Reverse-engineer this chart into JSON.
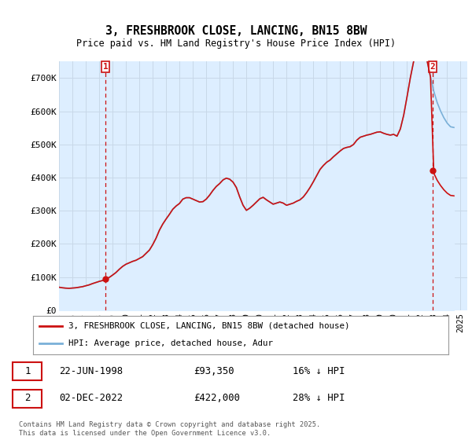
{
  "title": "3, FRESHBROOK CLOSE, LANCING, BN15 8BW",
  "subtitle": "Price paid vs. HM Land Registry's House Price Index (HPI)",
  "bg_color": "#ffffff",
  "fill_color": "#ddeeff",
  "grid_color": "#c8d8e8",
  "hpi_color": "#7ab0d8",
  "price_color": "#cc1111",
  "ylim": [
    0,
    750000
  ],
  "yticks": [
    0,
    100000,
    200000,
    300000,
    400000,
    500000,
    600000,
    700000
  ],
  "ytick_labels": [
    "£0",
    "£100K",
    "£200K",
    "£300K",
    "£400K",
    "£500K",
    "£600K",
    "£700K"
  ],
  "sale1_date": "22-JUN-1998",
  "sale1_price": 93350,
  "sale1_hpi_text": "16% ↓ HPI",
  "sale2_date": "02-DEC-2022",
  "sale2_price": 422000,
  "sale2_hpi_text": "28% ↓ HPI",
  "legend_label1": "3, FRESHBROOK CLOSE, LANCING, BN15 8BW (detached house)",
  "legend_label2": "HPI: Average price, detached house, Adur",
  "footnote": "Contains HM Land Registry data © Crown copyright and database right 2025.\nThis data is licensed under the Open Government Licence v3.0.",
  "sale1_x": 1998.47,
  "sale2_x": 2022.92,
  "hpi_index": [
    63.5,
    62.0,
    61.0,
    60.5,
    61.2,
    62.0,
    63.5,
    65.0,
    67.5,
    70.0,
    73.5,
    76.5,
    79.5,
    82.0,
    86.0,
    90.5,
    97.0,
    104.0,
    113.0,
    121.0,
    127.0,
    131.0,
    135.0,
    138.0,
    143.0,
    148.0,
    157.0,
    166.0,
    181.0,
    199.0,
    221.0,
    238.0,
    252.0,
    265.0,
    279.0,
    288.0,
    295.0,
    307.0,
    311.0,
    311.0,
    307.0,
    303.0,
    299.0,
    300.0,
    307.0,
    318.0,
    331.0,
    342.0,
    350.0,
    360.0,
    365.0,
    362.0,
    354.0,
    339.0,
    313.0,
    290.0,
    276.0,
    282.0,
    290.0,
    299.0,
    308.0,
    312.0,
    305.0,
    299.0,
    293.0,
    296.0,
    299.0,
    296.0,
    290.0,
    293.0,
    296.0,
    301.0,
    305.0,
    313.0,
    325.0,
    339.0,
    355.0,
    372.0,
    389.0,
    400.0,
    409.0,
    415.0,
    424.0,
    432.0,
    440.0,
    447.0,
    450.0,
    452.0,
    458.0,
    470.0,
    478.0,
    481.0,
    484.0,
    486.0,
    489.0,
    492.0,
    493.0,
    489.0,
    486.0,
    484.0,
    486.0,
    481.0,
    501.0,
    539.0,
    590.0,
    643.0,
    689.0,
    723.0,
    742.0,
    725.0,
    689.0,
    645.0,
    605.0,
    574.0,
    551.0,
    532.0,
    517.0,
    507.0,
    505.0
  ],
  "hpi_years": [
    1995.0,
    1995.25,
    1995.5,
    1995.75,
    1996.0,
    1996.25,
    1996.5,
    1996.75,
    1997.0,
    1997.25,
    1997.5,
    1997.75,
    1998.0,
    1998.25,
    1998.5,
    1998.75,
    1999.0,
    1999.25,
    1999.5,
    1999.75,
    2000.0,
    2000.25,
    2000.5,
    2000.75,
    2001.0,
    2001.25,
    2001.5,
    2001.75,
    2002.0,
    2002.25,
    2002.5,
    2002.75,
    2003.0,
    2003.25,
    2003.5,
    2003.75,
    2004.0,
    2004.25,
    2004.5,
    2004.75,
    2005.0,
    2005.25,
    2005.5,
    2005.75,
    2006.0,
    2006.25,
    2006.5,
    2006.75,
    2007.0,
    2007.25,
    2007.5,
    2007.75,
    2008.0,
    2008.25,
    2008.5,
    2008.75,
    2009.0,
    2009.25,
    2009.5,
    2009.75,
    2010.0,
    2010.25,
    2010.5,
    2010.75,
    2011.0,
    2011.25,
    2011.5,
    2011.75,
    2012.0,
    2012.25,
    2012.5,
    2012.75,
    2013.0,
    2013.25,
    2013.5,
    2013.75,
    2014.0,
    2014.25,
    2014.5,
    2014.75,
    2015.0,
    2015.25,
    2015.5,
    2015.75,
    2016.0,
    2016.25,
    2016.5,
    2016.75,
    2017.0,
    2017.25,
    2017.5,
    2017.75,
    2018.0,
    2018.25,
    2018.5,
    2018.75,
    2019.0,
    2019.25,
    2019.5,
    2019.75,
    2020.0,
    2020.25,
    2020.5,
    2020.75,
    2021.0,
    2021.25,
    2021.5,
    2021.75,
    2022.0,
    2022.25,
    2022.5,
    2022.75,
    2023.0,
    2023.25,
    2023.5,
    2023.75,
    2024.0,
    2024.25,
    2024.5
  ]
}
